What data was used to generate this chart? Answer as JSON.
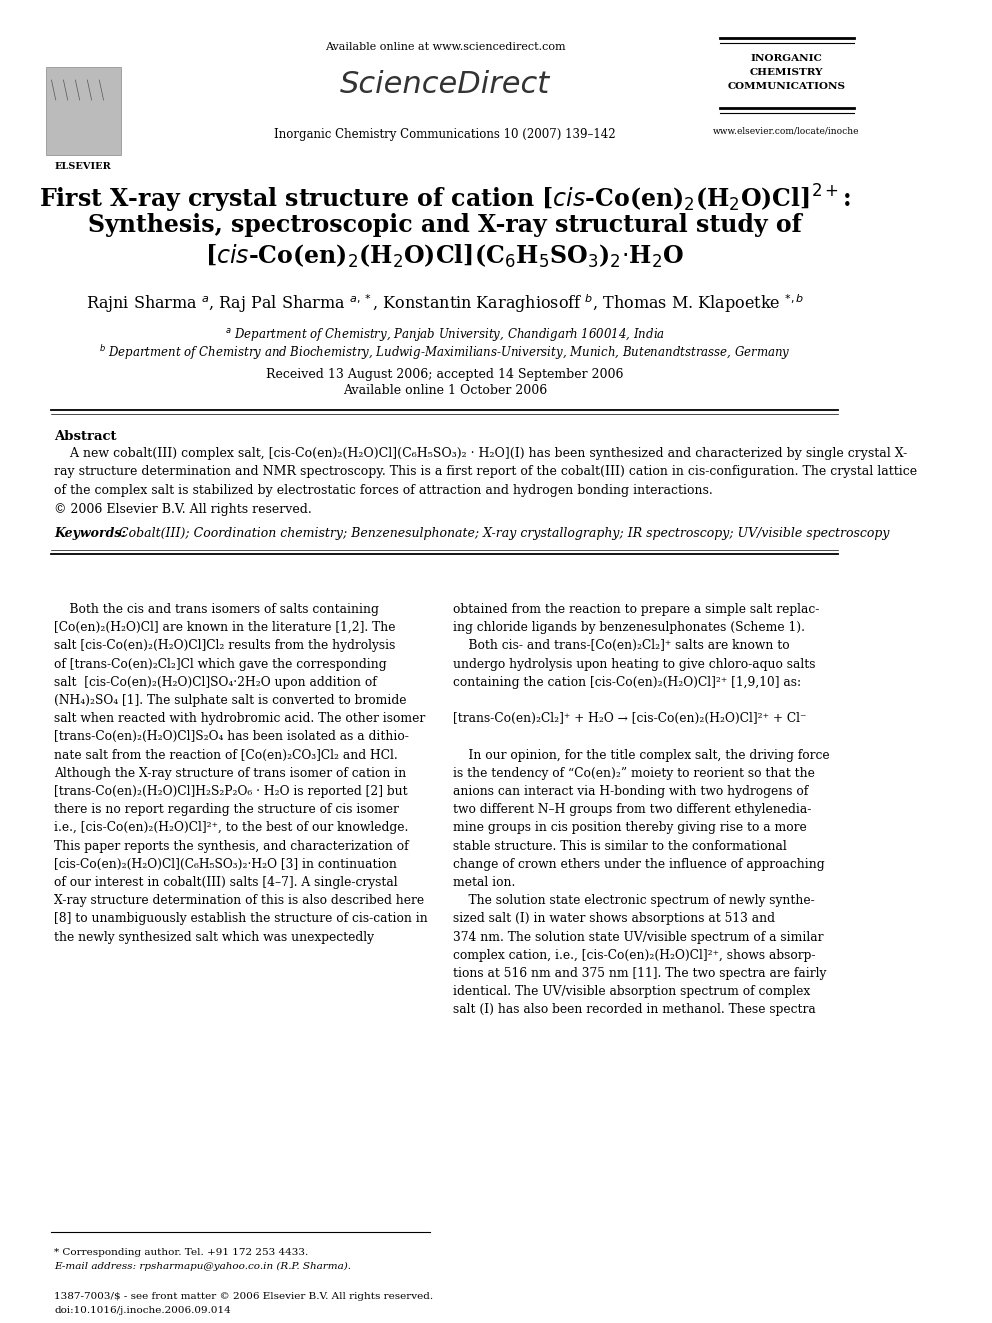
{
  "bg_color": "#ffffff",
  "available_online": "Available online at www.sciencedirect.com",
  "journal_name": "Inorganic Chemistry Communications 10 (2007) 139–142",
  "journal_abbrev_line1": "INORGANIC",
  "journal_abbrev_line2": "CHEMISTRY",
  "journal_abbrev_line3": "COMMUNICATIONS",
  "website": "www.elsevier.com/locate/inoche",
  "received": "Received 13 August 2006; accepted 14 September 2006",
  "available": "Available online 1 October 2006",
  "abstract_heading": "Abstract",
  "keywords_label": "Keywords:",
  "keywords_text": "Cobalt(III); Coordination chemistry; Benzenesulphonate; X-ray crystallography; IR spectroscopy; UV/visible spectroscopy",
  "footer_line1": "1387-7003/$ - see front matter © 2006 Elsevier B.V. All rights reserved.",
  "footer_line2": "doi:10.1016/j.inoche.2006.09.014",
  "footnote_star": "* Corresponding author. Tel. +91 172 253 4433.",
  "footnote_email": "E-mail address: rpsharmapu@yahoo.co.in (R.P. Sharma)."
}
